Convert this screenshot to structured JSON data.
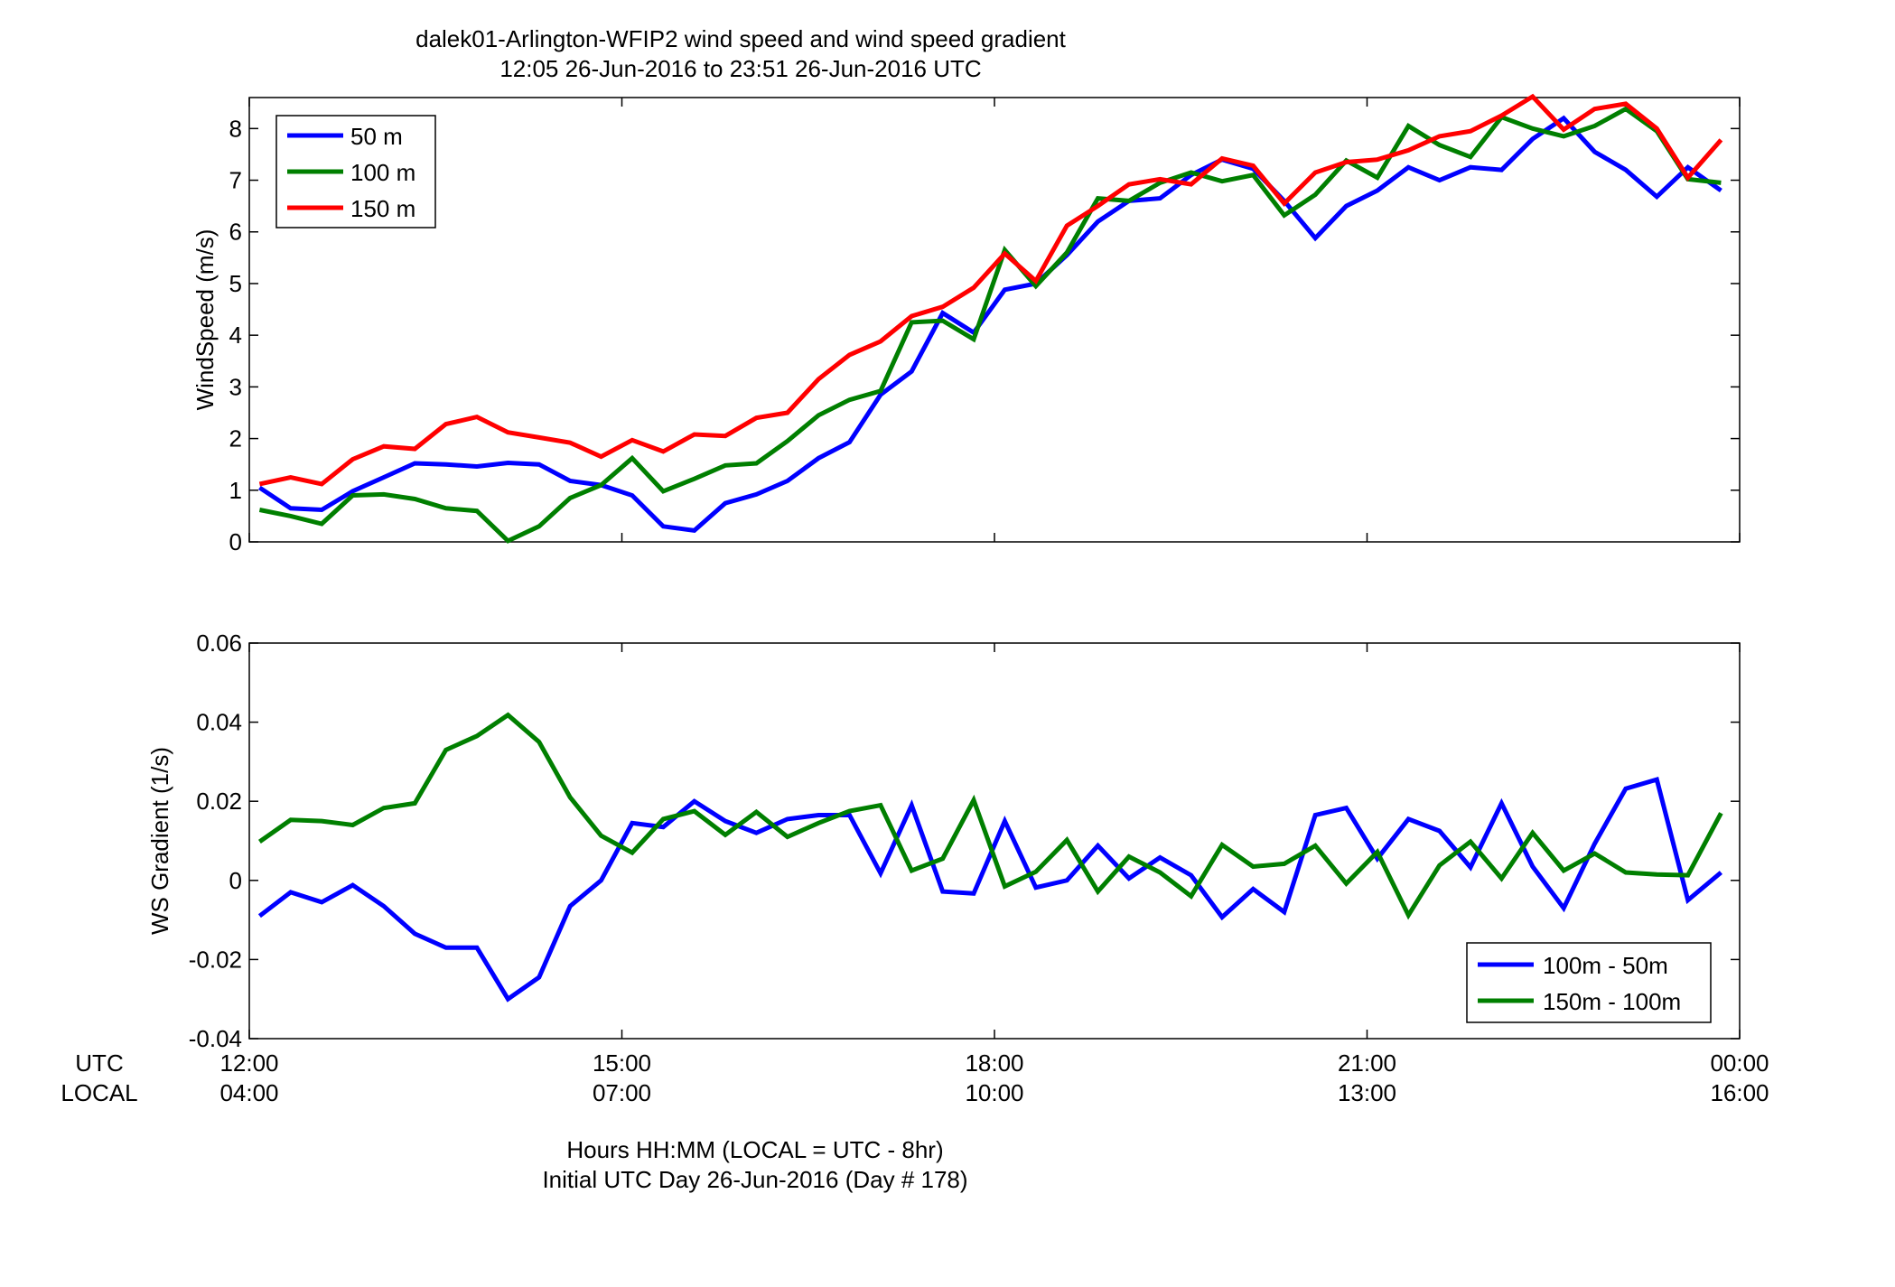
{
  "figure": {
    "title_line1": "dalek01-Arlington-WFIP2  wind speed and wind speed gradient",
    "title_line2": "12:05 26-Jun-2016 to 23:51 26-Jun-2016  UTC",
    "xlabel_line1": "Hours HH:MM  (LOCAL = UTC - 8hr)",
    "xlabel_line2": "Initial UTC Day 26-Jun-2016 (Day # 178)",
    "row_label_utc": "UTC",
    "row_label_local": "LOCAL",
    "utc_ticks": [
      "12:00",
      "15:00",
      "18:00",
      "21:00",
      "00:00"
    ],
    "local_ticks": [
      "04:00",
      "07:00",
      "10:00",
      "13:00",
      "16:00"
    ]
  },
  "colors": {
    "blue": "#0000ff",
    "green": "#007f00",
    "red": "#ff0000"
  },
  "chart_data": [
    {
      "type": "line",
      "title": "",
      "xlabel": "",
      "ylabel": "WindSpeed (m/s)",
      "xlim": [
        12.0,
        24.0
      ],
      "ylim": [
        0,
        8.6
      ],
      "yticks": [
        "0",
        "1",
        "2",
        "3",
        "4",
        "5",
        "6",
        "7",
        "8"
      ],
      "legend_position": "top-left",
      "grid": false,
      "x": [
        12.083,
        12.333,
        12.583,
        12.833,
        13.083,
        13.333,
        13.583,
        13.833,
        14.083,
        14.333,
        14.583,
        14.833,
        15.083,
        15.333,
        15.583,
        15.833,
        16.083,
        16.333,
        16.583,
        16.833,
        17.083,
        17.333,
        17.583,
        17.833,
        18.083,
        18.333,
        18.583,
        18.833,
        19.083,
        19.333,
        19.583,
        19.833,
        20.083,
        20.333,
        20.583,
        20.833,
        21.083,
        21.333,
        21.583,
        21.833,
        22.083,
        22.333,
        22.583,
        22.833,
        23.083,
        23.333,
        23.583,
        23.85
      ],
      "series": [
        {
          "name": "50 m",
          "color": "#0000ff",
          "values": [
            1.05,
            0.65,
            0.62,
            0.98,
            1.25,
            1.52,
            1.5,
            1.46,
            1.53,
            1.5,
            1.18,
            1.1,
            0.9,
            0.3,
            0.22,
            0.75,
            0.92,
            1.18,
            1.62,
            1.93,
            2.85,
            3.3,
            4.43,
            4.05,
            4.88,
            5.0,
            5.55,
            6.2,
            6.6,
            6.65,
            7.1,
            7.4,
            7.22,
            6.6,
            5.88,
            6.5,
            6.8,
            7.25,
            7.0,
            7.25,
            7.2,
            7.8,
            8.2,
            7.55,
            7.2,
            6.68,
            7.25,
            6.8
          ]
        },
        {
          "name": "100 m",
          "color": "#007f00",
          "values": [
            0.62,
            0.5,
            0.35,
            0.9,
            0.92,
            0.83,
            0.65,
            0.6,
            0.02,
            0.3,
            0.85,
            1.1,
            1.62,
            0.98,
            1.22,
            1.48,
            1.52,
            1.95,
            2.45,
            2.75,
            2.92,
            4.25,
            4.28,
            3.92,
            5.65,
            4.95,
            5.6,
            6.65,
            6.6,
            6.95,
            7.15,
            6.98,
            7.1,
            6.32,
            6.72,
            7.38,
            7.05,
            8.05,
            7.68,
            7.45,
            8.22,
            8.0,
            7.85,
            8.05,
            8.38,
            7.95,
            7.02,
            6.95
          ]
        },
        {
          "name": "150 m",
          "color": "#ff0000",
          "values": [
            1.12,
            1.25,
            1.12,
            1.6,
            1.85,
            1.8,
            2.28,
            2.42,
            2.12,
            2.02,
            1.92,
            1.65,
            1.97,
            1.75,
            2.08,
            2.05,
            2.4,
            2.5,
            3.15,
            3.62,
            3.88,
            4.37,
            4.55,
            4.92,
            5.58,
            5.05,
            6.12,
            6.5,
            6.92,
            7.02,
            6.92,
            7.42,
            7.28,
            6.55,
            7.15,
            7.35,
            7.4,
            7.58,
            7.85,
            7.95,
            8.25,
            8.62,
            7.98,
            8.38,
            8.48,
            8.0,
            7.05,
            7.78
          ]
        }
      ]
    },
    {
      "type": "line",
      "title": "",
      "xlabel": "",
      "ylabel": "WS Gradient (1/s)",
      "xlim": [
        12.0,
        24.0
      ],
      "ylim": [
        -0.04,
        0.06
      ],
      "yticks": [
        "-0.04",
        "-0.02",
        "0",
        "0.02",
        "0.04",
        "0.06"
      ],
      "legend_position": "bottom-right",
      "grid": false,
      "x": [
        12.083,
        12.333,
        12.583,
        12.833,
        13.083,
        13.333,
        13.583,
        13.833,
        14.083,
        14.333,
        14.583,
        14.833,
        15.083,
        15.333,
        15.583,
        15.833,
        16.083,
        16.333,
        16.583,
        16.833,
        17.083,
        17.333,
        17.583,
        17.833,
        18.083,
        18.333,
        18.583,
        18.833,
        19.083,
        19.333,
        19.583,
        19.833,
        20.083,
        20.333,
        20.583,
        20.833,
        21.083,
        21.333,
        21.583,
        21.833,
        22.083,
        22.333,
        22.583,
        22.833,
        23.083,
        23.333,
        23.583,
        23.85
      ],
      "series": [
        {
          "name": "100m - 50m",
          "color": "#0000ff",
          "values": [
            -0.009,
            -0.003,
            -0.0055,
            -0.0012,
            -0.0065,
            -0.0135,
            -0.017,
            -0.017,
            -0.03,
            -0.0245,
            -0.0065,
            0.0,
            0.0145,
            0.0135,
            0.02,
            0.015,
            0.012,
            0.0155,
            0.0165,
            0.0165,
            0.0018,
            0.019,
            -0.0028,
            -0.0033,
            0.015,
            -0.0018,
            0.0,
            0.0088,
            0.0005,
            0.0058,
            0.0013,
            -0.0093,
            -0.0022,
            -0.008,
            0.0165,
            0.0183,
            0.0055,
            0.0155,
            0.0125,
            0.0033,
            0.0195,
            0.0035,
            -0.007,
            0.0093,
            0.0232,
            0.0255,
            -0.005,
            0.002
          ]
        },
        {
          "name": "150m - 100m",
          "color": "#007f00",
          "values": [
            0.0098,
            0.0153,
            0.015,
            0.014,
            0.0183,
            0.0195,
            0.033,
            0.0365,
            0.0418,
            0.035,
            0.021,
            0.0113,
            0.007,
            0.0155,
            0.0175,
            0.0115,
            0.0173,
            0.011,
            0.0145,
            0.0175,
            0.019,
            0.0025,
            0.0055,
            0.0203,
            -0.0015,
            0.0022,
            0.0102,
            -0.0028,
            0.006,
            0.002,
            -0.004,
            0.009,
            0.0035,
            0.0042,
            0.0088,
            -0.0008,
            0.0072,
            -0.0088,
            0.0038,
            0.0098,
            0.0005,
            0.012,
            0.0025,
            0.0068,
            0.002,
            0.0015,
            0.0013,
            0.017
          ]
        }
      ]
    }
  ]
}
